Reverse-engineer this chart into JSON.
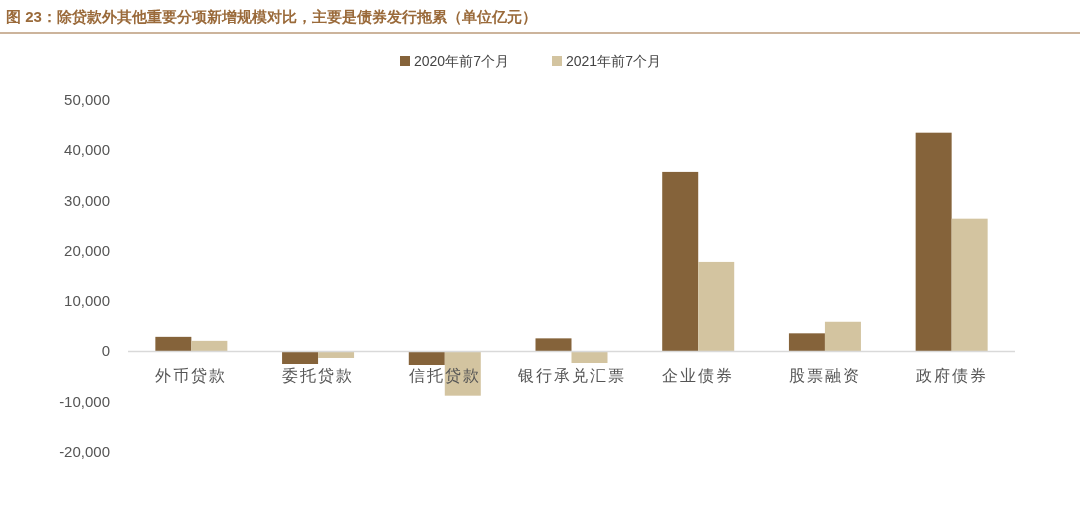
{
  "chart_data": {
    "type": "bar",
    "title": "图 23：除贷款外其他重要分项新增规模对比，主要是债券发行拖累（单位亿元）",
    "categories": [
      "外币贷款",
      "委托贷款",
      "信托贷款",
      "银行承兑汇票",
      "企业债券",
      "股票融资",
      "政府债券"
    ],
    "series": [
      {
        "name": "2020年前7个月",
        "color": "#85633a",
        "values": [
          2900,
          -2500,
          -2700,
          2600,
          35700,
          3600,
          43500
        ]
      },
      {
        "name": "2021年前7个月",
        "color": "#d3c4a0",
        "values": [
          2100,
          -1300,
          -8800,
          -2300,
          17800,
          5900,
          26400
        ]
      }
    ],
    "ylim": [
      -20000,
      50000
    ],
    "yticks": [
      {
        "value": -20000,
        "label": "-20,000"
      },
      {
        "value": -10000,
        "label": "-10,000"
      },
      0,
      {
        "value": 10000,
        "label": "10,000"
      },
      {
        "value": 20000,
        "label": "20,000"
      },
      {
        "value": 30000,
        "label": "30,000"
      },
      {
        "value": 40000,
        "label": "40,000"
      },
      {
        "value": 50000,
        "label": "50,000"
      }
    ],
    "grid": false,
    "legend": "top"
  }
}
